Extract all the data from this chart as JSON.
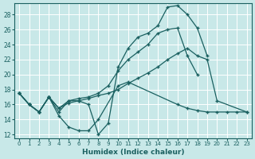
{
  "xlabel": "Humidex (Indice chaleur)",
  "ylabel": "",
  "bg_color": "#c8e8e8",
  "line_color": "#1a6060",
  "grid_color": "#b8d8d8",
  "xlim": [
    -0.5,
    23.5
  ],
  "ylim": [
    11.5,
    29.5
  ],
  "xticks": [
    0,
    1,
    2,
    3,
    4,
    5,
    6,
    7,
    8,
    9,
    10,
    11,
    12,
    13,
    14,
    15,
    16,
    17,
    18,
    19,
    20,
    21,
    22,
    23
  ],
  "yticks": [
    12,
    14,
    16,
    18,
    20,
    22,
    24,
    26,
    28
  ],
  "line1_x": [
    0,
    1,
    2,
    3,
    4,
    5,
    6,
    7,
    8,
    9,
    10,
    11,
    12,
    13,
    14,
    15,
    16,
    17,
    18,
    19
  ],
  "line1_y": [
    17.5,
    16.0,
    15.0,
    17.0,
    15.0,
    16.5,
    16.5,
    16.0,
    12.0,
    13.5,
    21.0,
    23.5,
    25.0,
    25.5,
    26.5,
    29.0,
    29.2,
    28.0,
    26.2,
    22.5
  ],
  "line2_x": [
    0,
    1,
    2,
    3,
    4,
    5,
    6,
    7,
    8,
    10,
    11,
    16,
    17,
    18,
    19,
    20,
    21,
    22,
    23
  ],
  "line2_y": [
    17.5,
    16.0,
    15.0,
    17.0,
    14.5,
    13.0,
    12.5,
    12.5,
    14.0,
    18.5,
    19.0,
    16.0,
    15.5,
    15.2,
    15.0,
    15.0,
    15.0,
    15.0,
    15.0
  ],
  "line3_x": [
    0,
    1,
    2,
    3,
    4,
    5,
    6,
    7,
    8,
    9,
    10,
    11,
    12,
    13,
    14,
    15,
    16,
    17,
    18
  ],
  "line3_y": [
    17.5,
    16.0,
    15.0,
    17.0,
    15.5,
    16.5,
    16.8,
    17.0,
    17.5,
    18.5,
    20.5,
    22.0,
    23.0,
    24.0,
    25.5,
    26.0,
    26.2,
    22.5,
    20.0
  ],
  "line4_x": [
    0,
    1,
    2,
    3,
    4,
    5,
    6,
    7,
    8,
    9,
    10,
    11,
    12,
    13,
    14,
    15,
    16,
    17,
    18,
    19,
    20,
    23
  ],
  "line4_y": [
    17.5,
    16.0,
    15.0,
    17.0,
    15.5,
    16.2,
    16.5,
    16.8,
    17.2,
    17.5,
    18.0,
    18.8,
    19.5,
    20.2,
    21.0,
    22.0,
    22.8,
    23.5,
    22.5,
    22.0,
    16.5,
    15.0
  ]
}
